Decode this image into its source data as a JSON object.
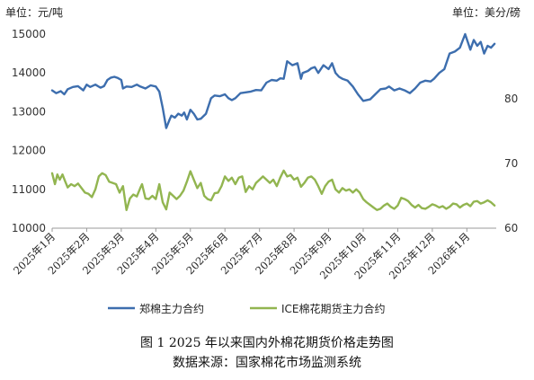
{
  "caption": {
    "line1": "图 1    2025 年以来国内外棉花期货价格走势图",
    "line2": "数据来源：国家棉花市场监测系统"
  },
  "colors": {
    "series1": "#3d6eae",
    "series2": "#92b550",
    "axis": "#9a9a9a"
  },
  "chart_data": {
    "type": "line",
    "left_axis": {
      "label": "单位：元/吨",
      "min": 10000,
      "max": 15000,
      "ticks": [
        10000,
        11000,
        12000,
        13000,
        14000,
        15000
      ]
    },
    "right_axis": {
      "label": "单位：美分/磅",
      "min": 60,
      "max": 90,
      "ticks": [
        60,
        70,
        80
      ]
    },
    "x_ticks": [
      "2025年1月",
      "2025年2月",
      "2025年3月",
      "2025年4月",
      "2025年5月",
      "2025年6月",
      "2025年7月",
      "2025年8月",
      "2025年9月",
      "2025年10月",
      "2025年11月",
      "2025年12月",
      "2026年1月"
    ],
    "x_range": [
      0,
      12.85
    ],
    "grid": false,
    "legend_position": "bottom",
    "series": [
      {
        "name": "郑棉主力合约",
        "axis": "left",
        "color": "#3d6eae",
        "x": [
          0,
          0.12,
          0.25,
          0.35,
          0.45,
          0.6,
          0.75,
          0.9,
          1.0,
          1.1,
          1.25,
          1.4,
          1.5,
          1.6,
          1.7,
          1.8,
          1.9,
          2.0,
          2.05,
          2.15,
          2.3,
          2.45,
          2.55,
          2.7,
          2.85,
          3.0,
          3.1,
          3.2,
          3.3,
          3.4,
          3.45,
          3.55,
          3.65,
          3.75,
          3.82,
          3.9,
          4.0,
          4.1,
          4.2,
          4.3,
          4.45,
          4.6,
          4.7,
          4.85,
          5.0,
          5.1,
          5.2,
          5.3,
          5.45,
          5.6,
          5.75,
          5.9,
          6.05,
          6.2,
          6.35,
          6.5,
          6.6,
          6.7,
          6.8,
          6.95,
          7.1,
          7.2,
          7.25,
          7.4,
          7.5,
          7.6,
          7.7,
          7.85,
          8.0,
          8.1,
          8.2,
          8.3,
          8.4,
          8.55,
          8.7,
          8.85,
          9.0,
          9.1,
          9.2,
          9.35,
          9.5,
          9.65,
          9.75,
          9.9,
          10.05,
          10.2,
          10.35,
          10.5,
          10.65,
          10.8,
          10.95,
          11.05,
          11.2,
          11.35,
          11.5,
          11.65,
          11.8,
          11.95,
          12.1,
          12.2,
          12.3,
          12.4,
          12.5,
          12.6,
          12.7,
          12.8
        ],
        "values": [
          13550,
          13480,
          13530,
          13450,
          13580,
          13640,
          13660,
          13550,
          13700,
          13640,
          13700,
          13620,
          13660,
          13820,
          13880,
          13900,
          13870,
          13820,
          13600,
          13650,
          13640,
          13700,
          13650,
          13600,
          13680,
          13650,
          13520,
          13100,
          12580,
          12800,
          12900,
          12850,
          12950,
          12900,
          12980,
          12800,
          13050,
          12950,
          12800,
          12820,
          12950,
          13350,
          13420,
          13400,
          13450,
          13350,
          13300,
          13350,
          13480,
          13500,
          13520,
          13560,
          13550,
          13750,
          13820,
          13800,
          13860,
          13850,
          14300,
          14200,
          14250,
          13850,
          14000,
          14050,
          14120,
          14150,
          14000,
          14200,
          14100,
          14250,
          14000,
          13900,
          13850,
          13800,
          13650,
          13450,
          13280,
          13300,
          13320,
          13450,
          13580,
          13600,
          13650,
          13550,
          13600,
          13550,
          13480,
          13600,
          13750,
          13800,
          13780,
          13850,
          14000,
          14100,
          14500,
          14550,
          14650,
          15000,
          14600,
          14850,
          14700,
          14800,
          14500,
          14700,
          14650,
          14750
        ]
      },
      {
        "name": "ICE棉花期货主力合约",
        "axis": "right",
        "color": "#92b550",
        "x": [
          0,
          0.08,
          0.15,
          0.22,
          0.3,
          0.38,
          0.45,
          0.55,
          0.65,
          0.75,
          0.85,
          0.95,
          1.05,
          1.15,
          1.25,
          1.35,
          1.45,
          1.55,
          1.65,
          1.75,
          1.85,
          1.95,
          2.05,
          2.15,
          2.25,
          2.35,
          2.45,
          2.55,
          2.6,
          2.7,
          2.8,
          2.9,
          3.0,
          3.1,
          3.2,
          3.3,
          3.4,
          3.5,
          3.6,
          3.7,
          3.8,
          3.9,
          4.0,
          4.1,
          4.2,
          4.3,
          4.4,
          4.5,
          4.6,
          4.7,
          4.8,
          4.9,
          5.0,
          5.1,
          5.2,
          5.3,
          5.4,
          5.5,
          5.6,
          5.7,
          5.8,
          5.9,
          6.0,
          6.1,
          6.2,
          6.3,
          6.4,
          6.5,
          6.6,
          6.7,
          6.8,
          6.9,
          7.0,
          7.1,
          7.2,
          7.3,
          7.4,
          7.5,
          7.6,
          7.7,
          7.8,
          7.9,
          8.0,
          8.1,
          8.2,
          8.3,
          8.4,
          8.5,
          8.6,
          8.7,
          8.8,
          8.9,
          9.0,
          9.1,
          9.2,
          9.3,
          9.4,
          9.5,
          9.6,
          9.7,
          9.8,
          9.9,
          10.0,
          10.1,
          10.2,
          10.3,
          10.4,
          10.5,
          10.6,
          10.7,
          10.8,
          10.9,
          11.0,
          11.1,
          11.2,
          11.3,
          11.4,
          11.5,
          11.6,
          11.7,
          11.8,
          11.9,
          12.0,
          12.1,
          12.2,
          12.3,
          12.4,
          12.5,
          12.6,
          12.7,
          12.8
        ],
        "values": [
          68.5,
          66.8,
          68.3,
          67.5,
          68.3,
          67.2,
          66.3,
          66.8,
          66.5,
          66.9,
          66.2,
          65.5,
          65.3,
          64.8,
          66.0,
          68.0,
          68.5,
          68.2,
          67.2,
          67.0,
          66.8,
          65.5,
          66.5,
          62.8,
          64.6,
          65.2,
          64.9,
          66.2,
          66.8,
          64.6,
          64.5,
          65.0,
          64.5,
          66.8,
          64.0,
          62.9,
          65.5,
          65.0,
          64.5,
          65.0,
          65.8,
          67.2,
          68.8,
          67.5,
          66.2,
          67.0,
          65.0,
          64.5,
          64.3,
          65.4,
          65.5,
          66.5,
          68.0,
          67.3,
          67.8,
          66.8,
          67.8,
          68.0,
          65.6,
          66.5,
          66.0,
          67.0,
          67.5,
          68.0,
          67.5,
          67.0,
          67.5,
          66.5,
          67.8,
          68.9,
          68.0,
          68.2,
          67.5,
          67.8,
          66.4,
          67.0,
          67.8,
          68.0,
          67.5,
          66.5,
          65.3,
          66.5,
          67.2,
          67.5,
          66.0,
          65.5,
          66.2,
          65.8,
          66.0,
          65.5,
          66.0,
          65.5,
          64.5,
          64.0,
          63.6,
          63.2,
          62.8,
          63.0,
          63.5,
          63.8,
          63.3,
          63.0,
          63.5,
          64.7,
          64.5,
          64.2,
          63.6,
          63.2,
          63.6,
          63.1,
          63.0,
          63.3,
          63.7,
          63.5,
          63.2,
          63.4,
          63.0,
          63.3,
          63.8,
          63.7,
          63.2,
          63.6,
          63.8,
          63.4,
          64.1,
          64.2,
          63.8,
          64.0,
          64.3,
          64.0,
          63.5
        ]
      }
    ]
  }
}
